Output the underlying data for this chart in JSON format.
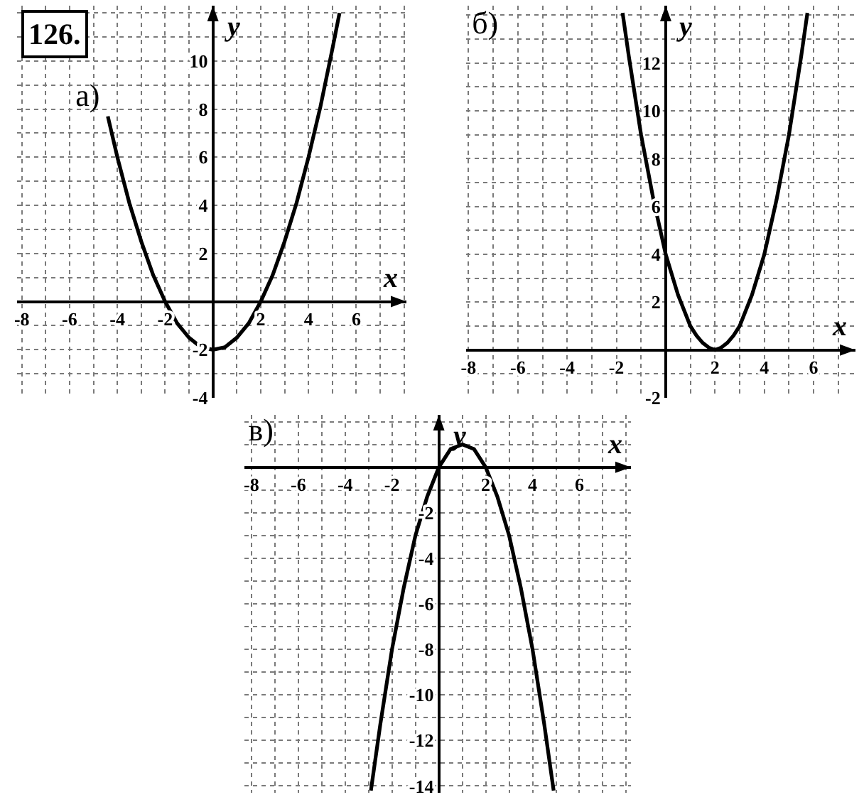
{
  "chart_data": [
    {
      "type": "line",
      "title": "а)",
      "xlabel": "x",
      "ylabel": "y",
      "annotations": [
        "126."
      ],
      "grid": true,
      "x": [
        -4.4,
        -4,
        -3.5,
        -3,
        -2.5,
        -2,
        -1.5,
        -1,
        -0.5,
        0,
        0.5,
        1,
        1.5,
        2,
        2.5,
        3,
        3.5,
        4,
        4.5,
        5,
        5.3
      ],
      "series": [
        {
          "color": "#000000",
          "values": [
            7.7,
            6,
            4.1,
            2.5,
            1.1,
            0,
            -0.9,
            -1.5,
            -1.9,
            -2,
            -1.9,
            -1.5,
            -0.9,
            0,
            1.1,
            2.5,
            4.1,
            6,
            8.1,
            10.5,
            12
          ]
        }
      ],
      "xlim": [
        -8.2,
        8.1
      ],
      "ylim": [
        -4,
        12.3
      ],
      "xticks": [
        -8,
        {
          "value": -7,
          "label": null
        },
        -6,
        {
          "value": -5,
          "label": null
        },
        -4,
        {
          "value": -3,
          "label": null
        },
        -2,
        {
          "value": -1,
          "label": null
        },
        {
          "value": 0,
          "label": null
        },
        {
          "value": 1,
          "label": null
        },
        2,
        {
          "value": 3,
          "label": null
        },
        4,
        {
          "value": 5,
          "label": null
        },
        6,
        {
          "value": 7,
          "label": null
        },
        {
          "value": 8,
          "label": null
        }
      ],
      "yticks": [
        -4,
        {
          "value": -3,
          "label": null
        },
        -2,
        {
          "value": -1,
          "label": null
        },
        {
          "value": 0,
          "label": null
        },
        {
          "value": 1,
          "label": null
        },
        2,
        {
          "value": 3,
          "label": null
        },
        4,
        {
          "value": 5,
          "label": null
        },
        6,
        {
          "value": 7,
          "label": null
        },
        8,
        {
          "value": 9,
          "label": null
        },
        10,
        {
          "value": 11,
          "label": null
        },
        {
          "value": 12,
          "label": null
        }
      ]
    },
    {
      "type": "line",
      "title": "б)",
      "xlabel": "x",
      "ylabel": "y",
      "grid": true,
      "x": [
        -1.75,
        -1.5,
        -1,
        -0.5,
        0,
        0.5,
        1,
        1.25,
        1.5,
        1.75,
        2,
        2.25,
        2.5,
        2.75,
        3,
        3.5,
        4,
        4.5,
        5,
        5.5,
        5.75
      ],
      "series": [
        {
          "color": "#000000",
          "values": [
            14.1,
            12.3,
            9,
            6.3,
            4,
            2.3,
            1,
            0.6,
            0.3,
            0.1,
            0,
            0.1,
            0.3,
            0.6,
            1,
            2.3,
            4,
            6.3,
            9,
            12.3,
            14.1
          ]
        }
      ],
      "xlim": [
        -8.1,
        7.7
      ],
      "ylim": [
        -2,
        14.4
      ],
      "xticks": [
        -8,
        {
          "value": -7,
          "label": null
        },
        -6,
        {
          "value": -5,
          "label": null
        },
        -4,
        {
          "value": -3,
          "label": null
        },
        -2,
        {
          "value": -1,
          "label": null
        },
        {
          "value": 0,
          "label": null
        },
        {
          "value": 1,
          "label": null
        },
        2,
        {
          "value": 3,
          "label": null
        },
        4,
        {
          "value": 5,
          "label": null
        },
        6,
        {
          "value": 7,
          "label": null
        }
      ],
      "yticks": [
        -2,
        {
          "value": -1,
          "label": null
        },
        {
          "value": 0,
          "label": null
        },
        {
          "value": 1,
          "label": null
        },
        2,
        {
          "value": 3,
          "label": null
        },
        4,
        {
          "value": 5,
          "label": null
        },
        6,
        {
          "value": 7,
          "label": null
        },
        8,
        {
          "value": 9,
          "label": null
        },
        10,
        {
          "value": 11,
          "label": null
        },
        12,
        {
          "value": 13,
          "label": null
        },
        {
          "value": 14,
          "label": null
        }
      ]
    },
    {
      "type": "line",
      "title": "в)",
      "xlabel": "x",
      "ylabel": "y",
      "grid": true,
      "x": [
        -2.9,
        -2.5,
        -2,
        -1.5,
        -1,
        -0.5,
        0,
        0.5,
        0.75,
        1,
        1.25,
        1.5,
        2,
        2.5,
        3,
        3.5,
        4,
        4.5,
        4.9
      ],
      "series": [
        {
          "color": "#000000",
          "values": [
            -14.2,
            -11.3,
            -8,
            -5.3,
            -3,
            -1.3,
            0,
            0.8,
            0.9,
            1,
            0.9,
            0.8,
            0,
            -1.3,
            -3,
            -5.3,
            -8,
            -11.3,
            -14.2
          ]
        }
      ],
      "xlim": [
        -8.3,
        8.2
      ],
      "ylim": [
        -14.3,
        2.3
      ],
      "xticks": [
        -8,
        {
          "value": -7,
          "label": null
        },
        -6,
        {
          "value": -5,
          "label": null
        },
        -4,
        {
          "value": -3,
          "label": null
        },
        -2,
        {
          "value": -1,
          "label": null
        },
        {
          "value": 0,
          "label": null
        },
        {
          "value": 1,
          "label": null
        },
        2,
        {
          "value": 3,
          "label": null
        },
        4,
        {
          "value": 5,
          "label": null
        },
        6,
        {
          "value": 7,
          "label": null
        },
        {
          "value": 8,
          "label": null
        }
      ],
      "yticks": [
        -14,
        {
          "value": -13,
          "label": null
        },
        -12,
        {
          "value": -11,
          "label": null
        },
        -10,
        {
          "value": -9,
          "label": null
        },
        -8,
        {
          "value": -7,
          "label": null
        },
        -6,
        {
          "value": -5,
          "label": null
        },
        -4,
        {
          "value": -3,
          "label": null
        },
        -2,
        {
          "value": -1,
          "label": null
        },
        {
          "value": 0,
          "label": null
        },
        {
          "value": 1,
          "label": null
        },
        {
          "value": 2,
          "label": null
        }
      ]
    }
  ]
}
